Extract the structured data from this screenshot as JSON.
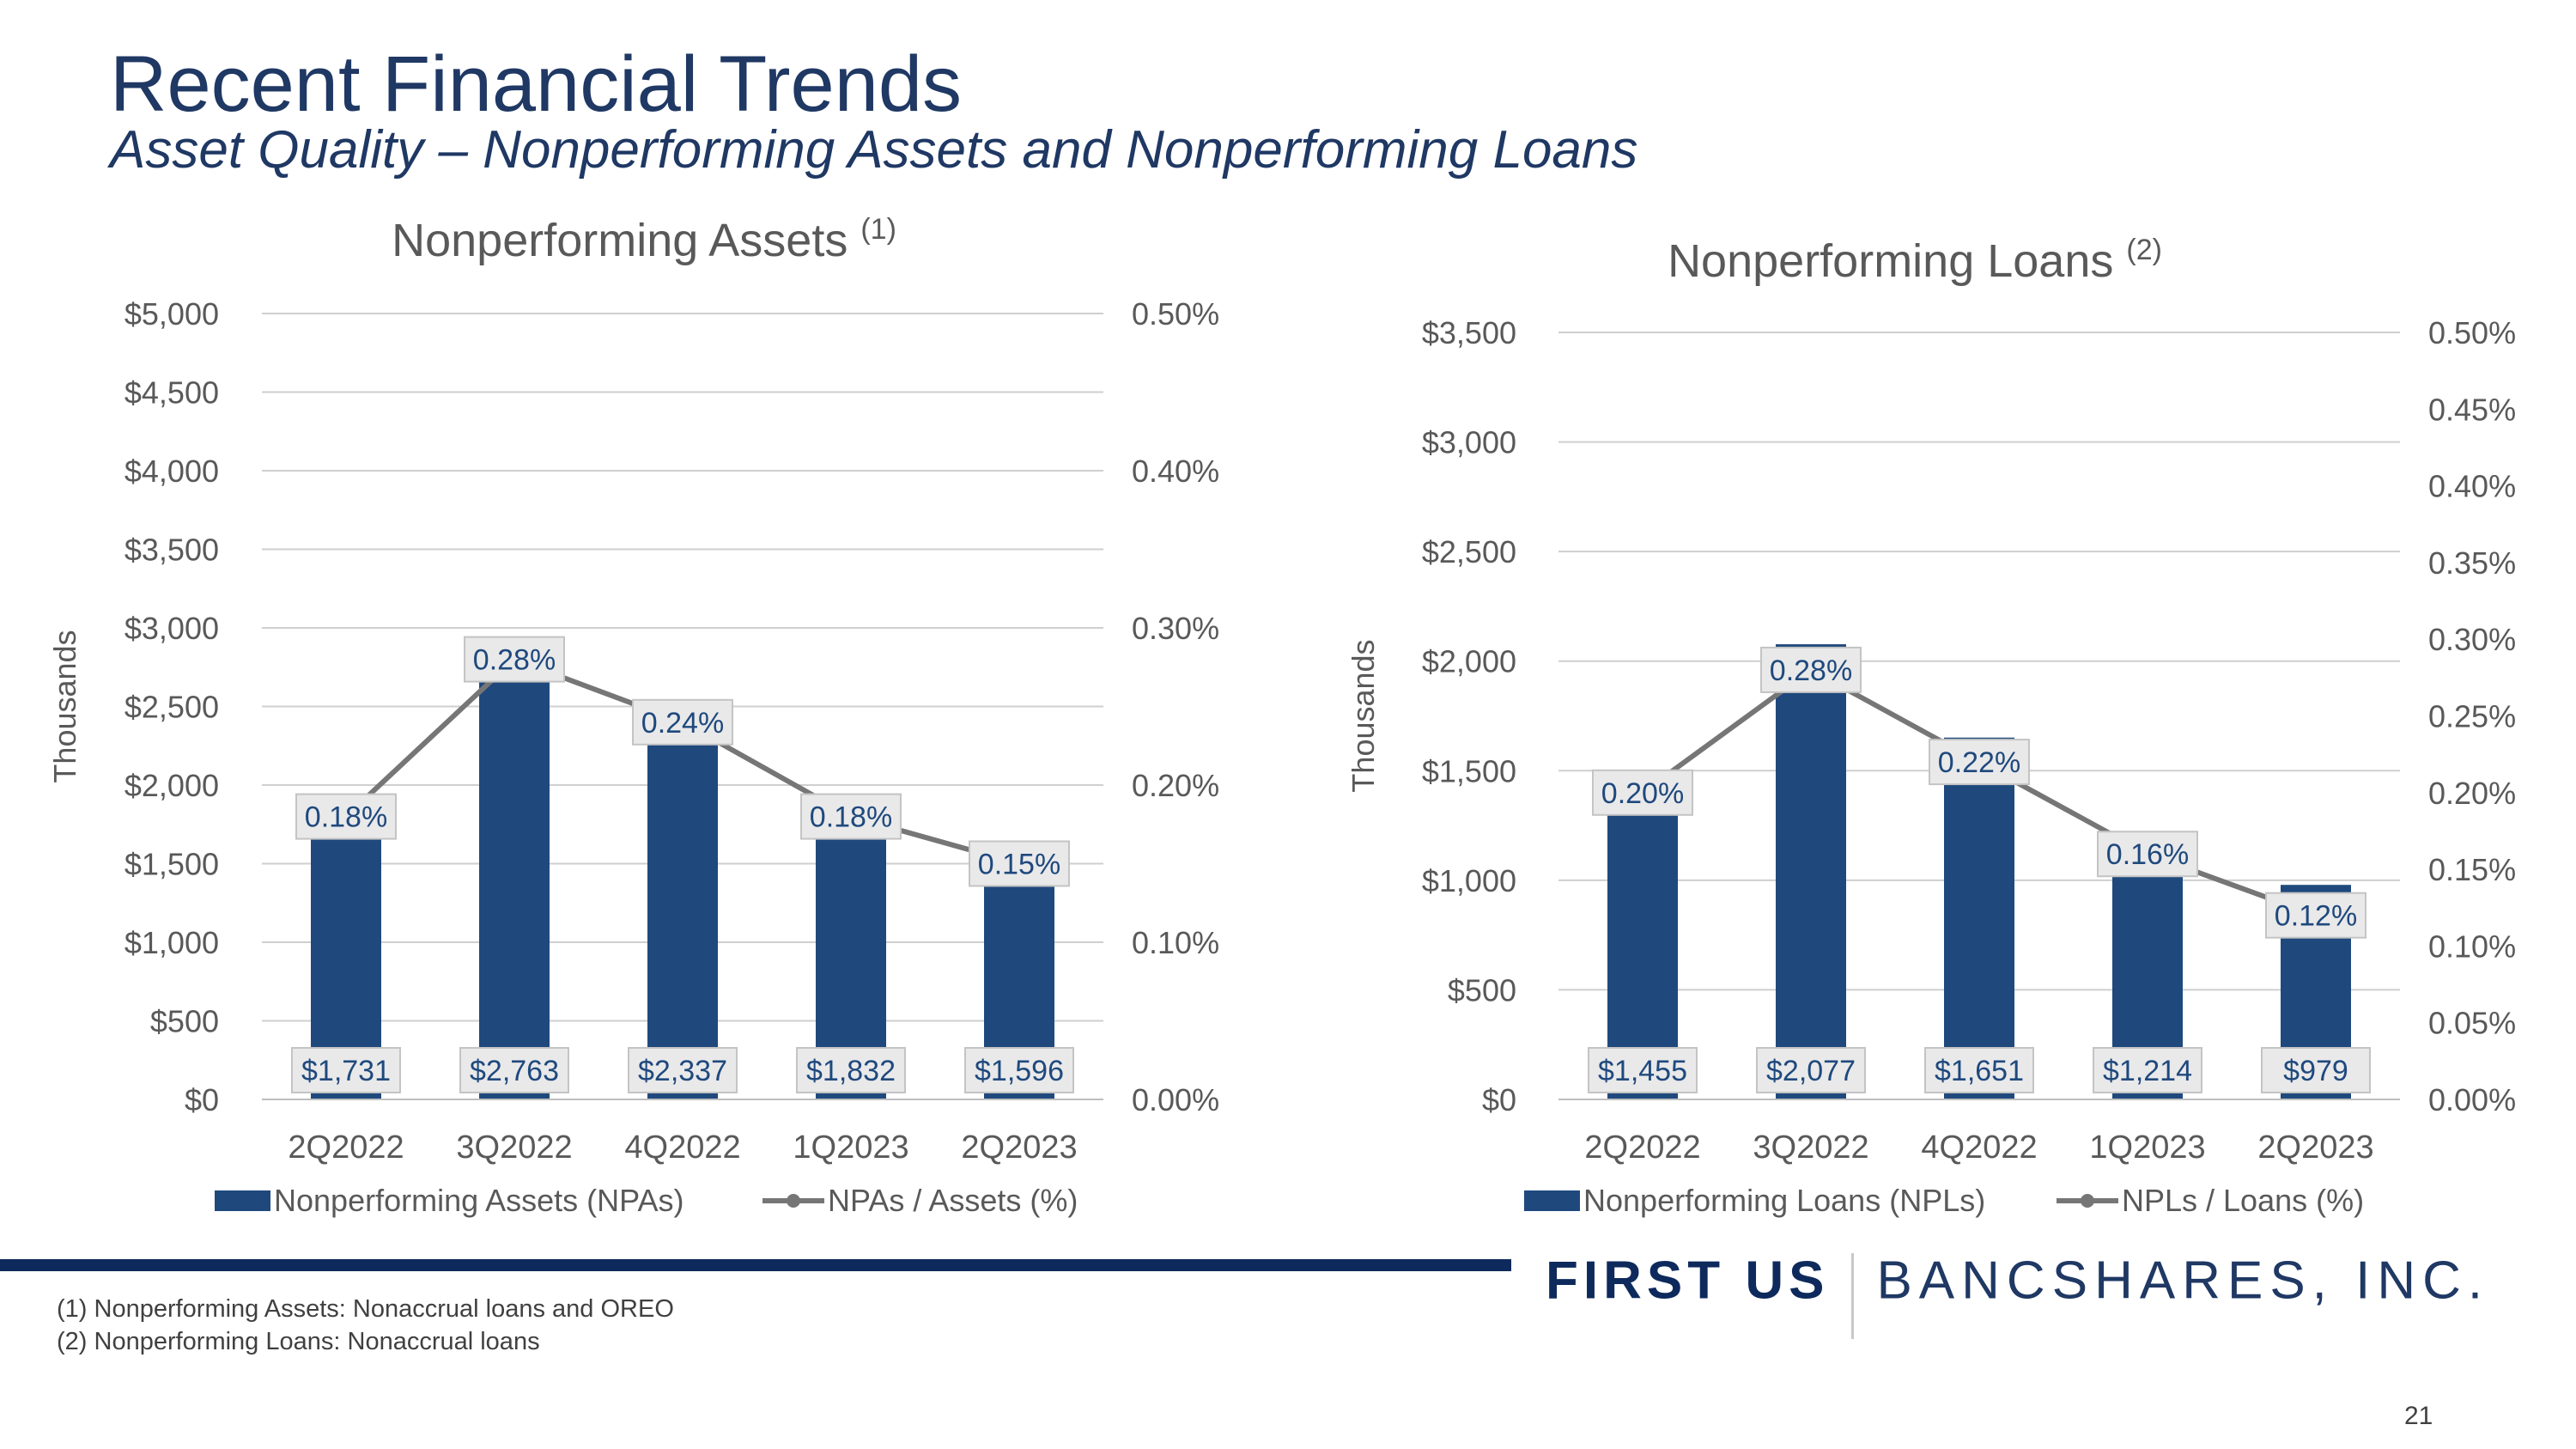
{
  "header": {
    "title": "Recent Financial Trends",
    "subtitle": "Asset Quality – Nonperforming Assets and Nonperforming Loans"
  },
  "chart_data": [
    {
      "type": "bar",
      "title": "Nonperforming Assets",
      "title_sup": "(1)",
      "ylabel": "Thousands",
      "categories": [
        "2Q2022",
        "3Q2022",
        "4Q2022",
        "1Q2023",
        "2Q2023"
      ],
      "ylim": [
        0,
        5000
      ],
      "y_ticks": [
        "$0",
        "$500",
        "$1,000",
        "$1,500",
        "$2,000",
        "$2,500",
        "$3,000",
        "$3,500",
        "$4,000",
        "$4,500",
        "$5,000"
      ],
      "y2lim": [
        0,
        0.5
      ],
      "y2_ticks": [
        "0.00%",
        "0.10%",
        "0.20%",
        "0.30%",
        "0.40%",
        "0.50%"
      ],
      "series": [
        {
          "name": "Nonperforming Assets (NPAs)",
          "kind": "bar",
          "axis": "left",
          "color": "#1f497d",
          "values": [
            1731,
            2763,
            2337,
            1832,
            1596
          ],
          "labels": [
            "$1,731",
            "$2,763",
            "$2,337",
            "$1,832",
            "$1,596"
          ]
        },
        {
          "name": "NPAs / Assets (%)",
          "kind": "line",
          "axis": "right",
          "color": "#767676",
          "values": [
            0.18,
            0.28,
            0.24,
            0.18,
            0.15
          ],
          "labels": [
            "0.18%",
            "0.28%",
            "0.24%",
            "0.18%",
            "0.15%"
          ]
        }
      ],
      "legend": "bottom",
      "grid": true
    },
    {
      "type": "bar",
      "title": "Nonperforming Loans",
      "title_sup": "(2)",
      "ylabel": "Thousands",
      "categories": [
        "2Q2022",
        "3Q2022",
        "4Q2022",
        "1Q2023",
        "2Q2023"
      ],
      "ylim": [
        0,
        3500
      ],
      "y_ticks": [
        "$0",
        "$500",
        "$1,000",
        "$1,500",
        "$2,000",
        "$2,500",
        "$3,000",
        "$3,500"
      ],
      "y2lim": [
        0,
        0.5
      ],
      "y2_ticks": [
        "0.00%",
        "0.05%",
        "0.10%",
        "0.15%",
        "0.20%",
        "0.25%",
        "0.30%",
        "0.35%",
        "0.40%",
        "0.45%",
        "0.50%"
      ],
      "series": [
        {
          "name": "Nonperforming Loans (NPLs)",
          "kind": "bar",
          "axis": "left",
          "color": "#1f497d",
          "values": [
            1455,
            2077,
            1651,
            1214,
            979
          ],
          "labels": [
            "$1,455",
            "$2,077",
            "$1,651",
            "$1,214",
            "$979"
          ]
        },
        {
          "name": "NPLs / Loans (%)",
          "kind": "line",
          "axis": "right",
          "color": "#767676",
          "values": [
            0.2,
            0.28,
            0.22,
            0.16,
            0.12
          ],
          "labels": [
            "0.20%",
            "0.28%",
            "0.22%",
            "0.16%",
            "0.12%"
          ]
        }
      ],
      "legend": "bottom",
      "grid": true
    }
  ],
  "brand": {
    "strong": "FIRST US",
    "light": "BANCSHARES, INC."
  },
  "footnotes": [
    "(1)  Nonperforming Assets: Nonaccrual loans and OREO",
    "(2)  Nonperforming Loans: Nonaccrual loans"
  ],
  "page_number": "21"
}
